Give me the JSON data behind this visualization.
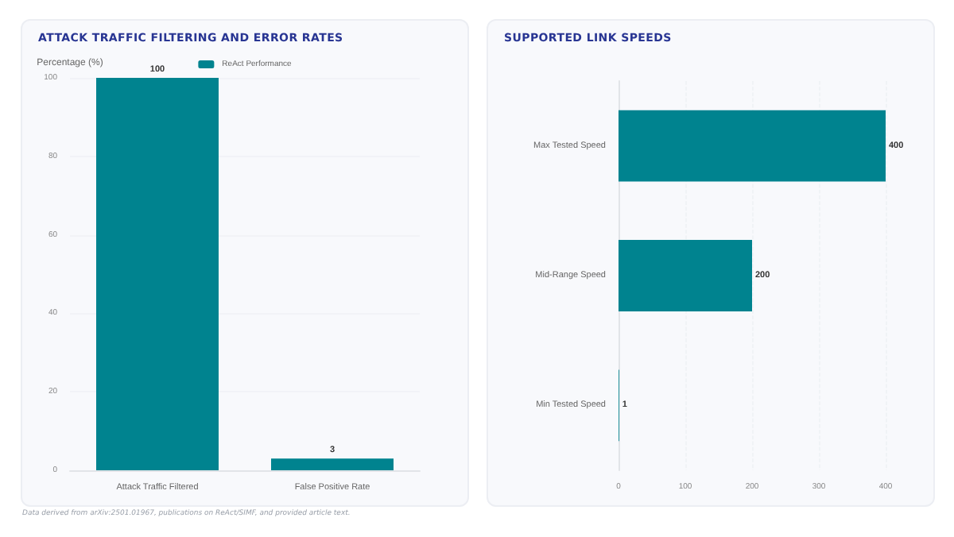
{
  "chart_data": [
    {
      "type": "bar",
      "title": "ATTACK TRAFFIC FILTERING AND ERROR RATES",
      "ylabel": "Percentage (%)",
      "categories": [
        "Attack Traffic Filtered",
        "False Positive Rate"
      ],
      "series": [
        {
          "name": "ReAct Performance",
          "color": "#00838f",
          "values": [
            100,
            3
          ]
        }
      ],
      "ylim": [
        0,
        100
      ],
      "yticks": [
        0,
        20,
        40,
        60,
        80,
        100
      ],
      "grid": "y",
      "legend": "top",
      "data_labels": true
    },
    {
      "type": "bar",
      "orientation": "horizontal",
      "title": "SUPPORTED LINK SPEEDS",
      "categories": [
        "Max Tested Speed",
        "Mid-Range Speed",
        "Min Tested Speed"
      ],
      "series": [
        {
          "color": "#00838f",
          "values": [
            400,
            200,
            1
          ]
        }
      ],
      "xlim": [
        0,
        400
      ],
      "xticks": [
        0,
        100,
        200,
        300,
        400
      ],
      "grid": "x",
      "legend": false,
      "data_labels": true,
      "annotations": [
        "Data derived from arXiv:2501.01967, publications on ReAct/SIMF, and provided article text."
      ]
    }
  ]
}
